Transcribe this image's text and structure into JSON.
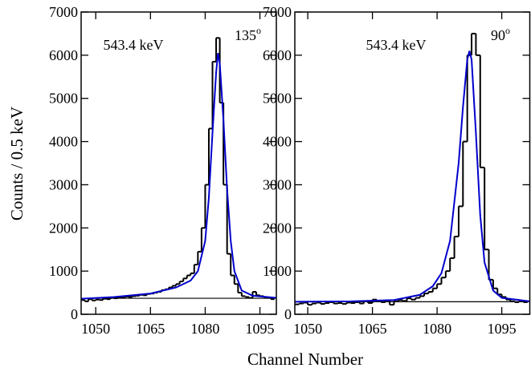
{
  "xlabel": "Channel Number",
  "ylabel": "Counts / 0.5 keV",
  "chart_data": [
    {
      "type": "histogram",
      "bins": [
        1046,
        1047,
        1048,
        1049,
        1050,
        1051,
        1052,
        1053,
        1054,
        1055,
        1056,
        1057,
        1058,
        1059,
        1060,
        1061,
        1062,
        1063,
        1064,
        1065,
        1066,
        1067,
        1068,
        1069,
        1070,
        1071,
        1072,
        1073,
        1074,
        1075,
        1076,
        1077,
        1078,
        1079,
        1080,
        1081,
        1082,
        1083,
        1084,
        1085,
        1086,
        1087,
        1088,
        1089,
        1090,
        1091,
        1092,
        1093,
        1094,
        1095,
        1096,
        1097,
        1098,
        1099
      ],
      "values": [
        330,
        300,
        350,
        320,
        340,
        330,
        360,
        350,
        380,
        370,
        390,
        380,
        410,
        400,
        420,
        430,
        450,
        440,
        470,
        480,
        500,
        520,
        560,
        580,
        620,
        660,
        700,
        760,
        830,
        900,
        950,
        1150,
        1450,
        2000,
        3000,
        4300,
        5850,
        6400,
        4900,
        3000,
        1400,
        900,
        700,
        500,
        420,
        400,
        380,
        520,
        440,
        420,
        400,
        380,
        350
      ],
      "color": "#000000",
      "fit": {
        "x": [
          1046,
          1055,
          1065,
          1072,
          1076,
          1078,
          1080,
          1081,
          1082,
          1083,
          1083.5,
          1084,
          1085,
          1086,
          1087,
          1088,
          1090,
          1093,
          1099.5
        ],
        "values": [
          360,
          400,
          480,
          620,
          780,
          1000,
          1700,
          2700,
          4200,
          5600,
          6050,
          5800,
          4500,
          2900,
          1700,
          1000,
          550,
          430,
          380
        ],
        "color": "#0000cc"
      },
      "baseline": 370,
      "baseline_color": "#000000",
      "xlim": [
        1046,
        1099.5
      ],
      "ylim": [
        0,
        7000
      ],
      "xticks": [
        1050,
        1065,
        1080,
        1095
      ],
      "yticks": [
        0,
        1000,
        2000,
        3000,
        4000,
        5000,
        6000,
        7000
      ],
      "peak_label": "543.4 keV",
      "angle": {
        "text": "135",
        "sup": "o"
      }
    },
    {
      "type": "histogram",
      "bins": [
        1047,
        1048,
        1049,
        1050,
        1051,
        1052,
        1053,
        1054,
        1055,
        1056,
        1057,
        1058,
        1059,
        1060,
        1061,
        1062,
        1063,
        1064,
        1065,
        1066,
        1067,
        1068,
        1069,
        1070,
        1071,
        1072,
        1073,
        1074,
        1075,
        1076,
        1077,
        1078,
        1079,
        1080,
        1081,
        1082,
        1083,
        1084,
        1085,
        1086,
        1087,
        1088,
        1089,
        1090,
        1091,
        1092,
        1093,
        1094,
        1095,
        1096,
        1097,
        1098,
        1099,
        1100,
        1101
      ],
      "values": [
        230,
        250,
        270,
        220,
        250,
        270,
        240,
        260,
        280,
        250,
        260,
        240,
        270,
        260,
        280,
        250,
        300,
        260,
        340,
        300,
        280,
        320,
        220,
        300,
        330,
        310,
        370,
        340,
        380,
        420,
        480,
        520,
        600,
        700,
        850,
        1000,
        1300,
        1800,
        2500,
        4000,
        6000,
        6500,
        6000,
        3400,
        1500,
        800,
        600,
        460,
        400,
        340,
        300,
        280,
        300,
        280
      ],
      "color": "#000000",
      "fit": {
        "x": [
          1047,
          1060,
          1070,
          1076,
          1079,
          1081,
          1083,
          1085,
          1086,
          1087,
          1087.5,
          1088,
          1089,
          1090,
          1091,
          1093,
          1095,
          1101.5
        ],
        "values": [
          290,
          300,
          330,
          450,
          650,
          950,
          1700,
          3500,
          4800,
          5900,
          6100,
          5900,
          4200,
          2300,
          1200,
          550,
          380,
          300
        ],
        "color": "#0000cc"
      },
      "baseline": 290,
      "baseline_color": "#000000",
      "xlim": [
        1047,
        1101.5
      ],
      "ylim": [
        0,
        7000
      ],
      "xticks": [
        1050,
        1065,
        1080,
        1095
      ],
      "yticks": [
        0,
        1000,
        2000,
        3000,
        4000,
        5000,
        6000,
        7000
      ],
      "peak_label": "543.4 keV",
      "angle": {
        "text": "90",
        "sup": "o"
      }
    }
  ]
}
